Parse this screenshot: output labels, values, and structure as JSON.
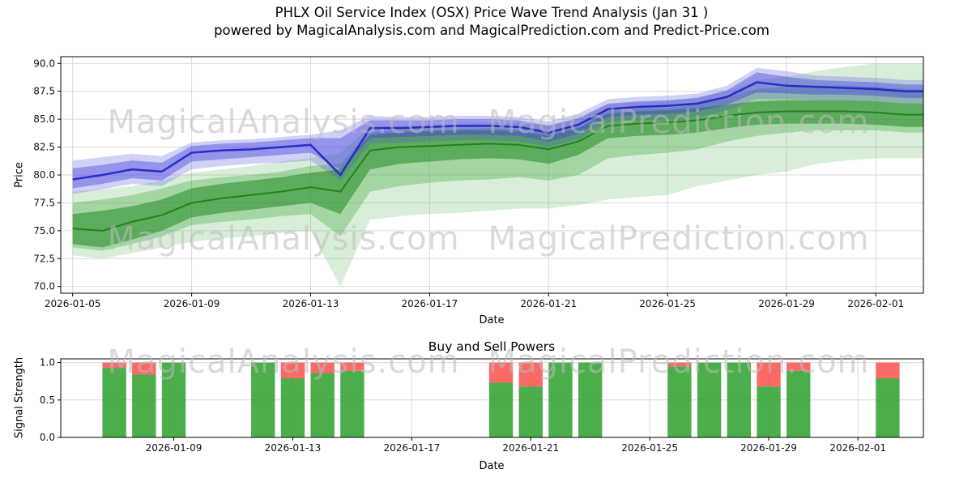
{
  "watermark": {
    "analysis": "MagicalAnalysis.com",
    "prediction": "MagicalPrediction.com"
  },
  "chart_data": [
    {
      "name": "price-wave-trend",
      "type": "area",
      "title": "PHLX Oil Service Index (OSX) Price Wave Trend Analysis (Jan 31 )",
      "subtitle": "powered by MagicalAnalysis.com and MagicalPrediction.com and Predict-Price.com",
      "xlabel": "Date",
      "ylabel": "Price",
      "x_start_date": "2026-01-05",
      "xlim_days": [
        -0.4,
        28.6
      ],
      "ylim": [
        69.4,
        90.6
      ],
      "yticks": [
        70.0,
        72.5,
        75.0,
        77.5,
        80.0,
        82.5,
        85.0,
        87.5,
        90.0
      ],
      "xticks": [
        {
          "day": 0,
          "label": "2026-01-05"
        },
        {
          "day": 4,
          "label": "2026-01-09"
        },
        {
          "day": 8,
          "label": "2026-01-13"
        },
        {
          "day": 12,
          "label": "2026-01-17"
        },
        {
          "day": 16,
          "label": "2026-01-21"
        },
        {
          "day": 20,
          "label": "2026-01-25"
        },
        {
          "day": 24,
          "label": "2026-01-29"
        },
        {
          "day": 27,
          "label": "2026-02-01"
        }
      ],
      "grid": true,
      "days": [
        0,
        1,
        2,
        3,
        4,
        5,
        6,
        7,
        8,
        9,
        10,
        11,
        12,
        13,
        14,
        15,
        16,
        17,
        18,
        19,
        20,
        21,
        22,
        23,
        24,
        25,
        26,
        27,
        28
      ],
      "bands": [
        {
          "name": "green-outer",
          "color": "#2ca02c",
          "opacity": 0.18,
          "lower": [
            72.8,
            72.5,
            73.0,
            73.5,
            74.0,
            74.3,
            74.5,
            74.8,
            75.0,
            70.0,
            76.0,
            76.3,
            76.5,
            76.6,
            76.8,
            77.0,
            77.0,
            77.3,
            77.8,
            78.0,
            78.2,
            79.0,
            79.5,
            80.0,
            80.3,
            81.0,
            81.3,
            81.5,
            81.5
          ],
          "upper": [
            78.5,
            78.7,
            79.0,
            79.5,
            80.2,
            80.5,
            80.8,
            81.2,
            81.5,
            82.0,
            84.3,
            84.4,
            84.5,
            84.6,
            84.7,
            84.7,
            84.5,
            85.0,
            86.3,
            86.5,
            86.6,
            87.0,
            87.5,
            88.5,
            88.8,
            89.3,
            89.7,
            90.0,
            90.0
          ]
        },
        {
          "name": "green-mid",
          "color": "#2ca02c",
          "opacity": 0.3,
          "lower": [
            73.5,
            73.2,
            73.8,
            74.5,
            75.5,
            75.8,
            76.0,
            76.3,
            76.5,
            74.5,
            78.5,
            79.0,
            79.3,
            79.5,
            79.6,
            79.8,
            79.5,
            80.0,
            81.5,
            81.8,
            82.0,
            82.3,
            83.0,
            83.5,
            83.8,
            84.0,
            84.0,
            84.0,
            83.8
          ],
          "upper": [
            77.5,
            77.8,
            78.2,
            78.8,
            79.5,
            79.8,
            80.0,
            80.3,
            80.8,
            81.0,
            83.8,
            84.0,
            84.0,
            84.1,
            84.2,
            84.1,
            83.8,
            84.3,
            85.7,
            85.9,
            86.0,
            86.3,
            87.0,
            87.7,
            87.9,
            88.0,
            88.0,
            87.9,
            87.7
          ]
        },
        {
          "name": "green-core",
          "color": "#228b22",
          "opacity": 0.55,
          "lower": [
            73.8,
            73.5,
            74.2,
            75.0,
            76.2,
            76.6,
            76.9,
            77.2,
            77.5,
            76.5,
            80.5,
            81.0,
            81.2,
            81.4,
            81.5,
            81.4,
            81.0,
            81.8,
            83.3,
            83.5,
            83.6,
            83.8,
            84.2,
            84.5,
            84.6,
            84.6,
            84.6,
            84.5,
            84.3
          ],
          "upper": [
            76.5,
            76.8,
            77.2,
            77.8,
            78.8,
            79.2,
            79.5,
            79.8,
            80.2,
            80.5,
            83.6,
            83.8,
            83.9,
            84.0,
            84.0,
            83.9,
            83.5,
            84.2,
            85.5,
            85.7,
            85.8,
            86.0,
            86.3,
            86.6,
            86.7,
            86.7,
            86.7,
            86.6,
            86.4
          ]
        },
        {
          "name": "blue-outer",
          "color": "#4646e0",
          "opacity": 0.25,
          "lower": [
            78.3,
            78.7,
            79.2,
            79.0,
            80.5,
            80.8,
            81.0,
            81.1,
            81.3,
            79.5,
            82.8,
            82.9,
            83.0,
            83.1,
            83.1,
            83.0,
            82.5,
            83.2,
            84.7,
            84.9,
            85.0,
            85.2,
            85.8,
            86.8,
            86.8,
            86.7,
            86.7,
            86.6,
            86.4
          ],
          "upper": [
            81.3,
            81.6,
            81.9,
            81.7,
            82.9,
            83.1,
            83.2,
            83.4,
            83.6,
            84.0,
            85.3,
            85.2,
            85.2,
            85.3,
            85.3,
            85.2,
            84.8,
            85.5,
            86.8,
            87.0,
            87.1,
            87.3,
            88.0,
            89.6,
            89.3,
            88.9,
            88.8,
            88.7,
            88.5
          ]
        },
        {
          "name": "blue-mid",
          "color": "#4141d9",
          "opacity": 0.42,
          "lower": [
            78.8,
            79.2,
            79.7,
            79.5,
            81.2,
            81.4,
            81.6,
            81.8,
            82.0,
            80.5,
            83.3,
            83.4,
            83.5,
            83.6,
            83.6,
            83.5,
            83.0,
            83.7,
            85.2,
            85.4,
            85.5,
            85.7,
            86.3,
            87.4,
            87.3,
            87.2,
            87.2,
            87.1,
            86.9
          ],
          "upper": [
            80.6,
            80.9,
            81.3,
            81.1,
            82.6,
            82.8,
            82.9,
            83.1,
            83.3,
            83.3,
            84.9,
            84.9,
            84.9,
            85.0,
            85.0,
            84.9,
            84.4,
            85.1,
            86.4,
            86.6,
            86.7,
            86.9,
            87.6,
            89.2,
            88.8,
            88.5,
            88.4,
            88.3,
            88.1
          ]
        }
      ],
      "lines": [
        {
          "name": "green-trend-line",
          "color": "#1e7b1e",
          "width": 2,
          "opacity": 0.9,
          "values": [
            75.2,
            75.0,
            75.8,
            76.4,
            77.5,
            77.9,
            78.2,
            78.5,
            78.9,
            78.5,
            82.2,
            82.5,
            82.6,
            82.7,
            82.8,
            82.7,
            82.3,
            83.0,
            84.4,
            84.6,
            84.7,
            84.9,
            85.3,
            85.6,
            85.7,
            85.7,
            85.7,
            85.6,
            85.4
          ]
        },
        {
          "name": "blue-trend-line",
          "color": "#2525c8",
          "width": 2.5,
          "opacity": 0.95,
          "values": [
            79.6,
            80.0,
            80.5,
            80.3,
            82.0,
            82.2,
            82.3,
            82.5,
            82.7,
            80.0,
            84.2,
            84.2,
            84.3,
            84.4,
            84.4,
            84.3,
            83.8,
            84.5,
            85.9,
            86.1,
            86.2,
            86.4,
            87.0,
            88.3,
            88.0,
            87.9,
            87.8,
            87.7,
            87.5
          ]
        }
      ]
    },
    {
      "name": "buy-sell-powers",
      "type": "bar",
      "title": "Buy and Sell Powers",
      "xlabel": "Date",
      "ylabel": "Signal Strength",
      "x_start_date": "2026-01-05",
      "xlim_days": [
        0.2,
        29.2
      ],
      "ylim": [
        0,
        1.05
      ],
      "yticks": [
        0.0,
        0.5,
        1.0
      ],
      "xticks": [
        {
          "day": 4,
          "label": "2026-01-09"
        },
        {
          "day": 8,
          "label": "2026-01-13"
        },
        {
          "day": 12,
          "label": "2026-01-17"
        },
        {
          "day": 16,
          "label": "2026-01-21"
        },
        {
          "day": 20,
          "label": "2026-01-25"
        },
        {
          "day": 24,
          "label": "2026-01-29"
        },
        {
          "day": 27,
          "label": "2026-02-01"
        }
      ],
      "grid": true,
      "bar_width_days": 0.8,
      "colors": {
        "buy": "#2ca02c",
        "sell": "#f94541"
      },
      "bars": [
        {
          "date": "2026-01-07",
          "day": 2,
          "buy": 0.93,
          "sell": 0.07
        },
        {
          "date": "2026-01-08",
          "day": 3,
          "buy": 0.84,
          "sell": 0.16
        },
        {
          "date": "2026-01-09",
          "day": 4,
          "buy": 1.0,
          "sell": 0.0
        },
        {
          "date": "2026-01-12",
          "day": 7,
          "buy": 1.0,
          "sell": 0.0
        },
        {
          "date": "2026-01-13",
          "day": 8,
          "buy": 0.79,
          "sell": 0.21
        },
        {
          "date": "2026-01-14",
          "day": 9,
          "buy": 0.86,
          "sell": 0.14
        },
        {
          "date": "2026-01-15",
          "day": 10,
          "buy": 0.89,
          "sell": 0.11
        },
        {
          "date": "2026-01-20",
          "day": 15,
          "buy": 0.73,
          "sell": 0.27
        },
        {
          "date": "2026-01-21",
          "day": 16,
          "buy": 0.68,
          "sell": 0.32
        },
        {
          "date": "2026-01-22",
          "day": 17,
          "buy": 1.0,
          "sell": 0.0
        },
        {
          "date": "2026-01-23",
          "day": 18,
          "buy": 1.0,
          "sell": 0.0
        },
        {
          "date": "2026-01-26",
          "day": 21,
          "buy": 0.95,
          "sell": 0.05
        },
        {
          "date": "2026-01-27",
          "day": 22,
          "buy": 1.0,
          "sell": 0.0
        },
        {
          "date": "2026-01-28",
          "day": 23,
          "buy": 1.0,
          "sell": 0.0
        },
        {
          "date": "2026-01-29",
          "day": 24,
          "buy": 0.68,
          "sell": 0.32
        },
        {
          "date": "2026-01-30",
          "day": 25,
          "buy": 0.89,
          "sell": 0.11
        },
        {
          "date": "2026-02-02",
          "day": 28,
          "buy": 0.79,
          "sell": 0.21
        }
      ]
    }
  ]
}
